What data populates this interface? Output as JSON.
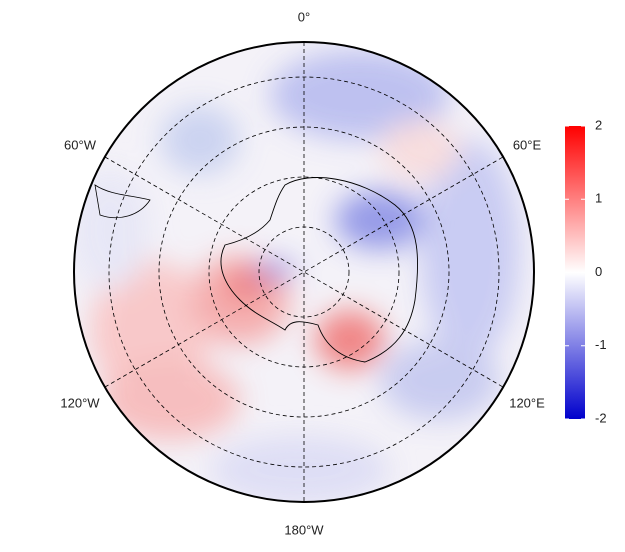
{
  "map": {
    "longitude_labels": [
      "0°",
      "60°E",
      "120°E",
      "180°W",
      "120°W",
      "60°W"
    ],
    "colorbar": {
      "range": [
        -2,
        2
      ],
      "ticks": [
        2,
        1,
        0,
        -1,
        -2
      ],
      "colors": [
        "#0000cc",
        "#ffffff",
        "#ff0000"
      ]
    }
  }
}
